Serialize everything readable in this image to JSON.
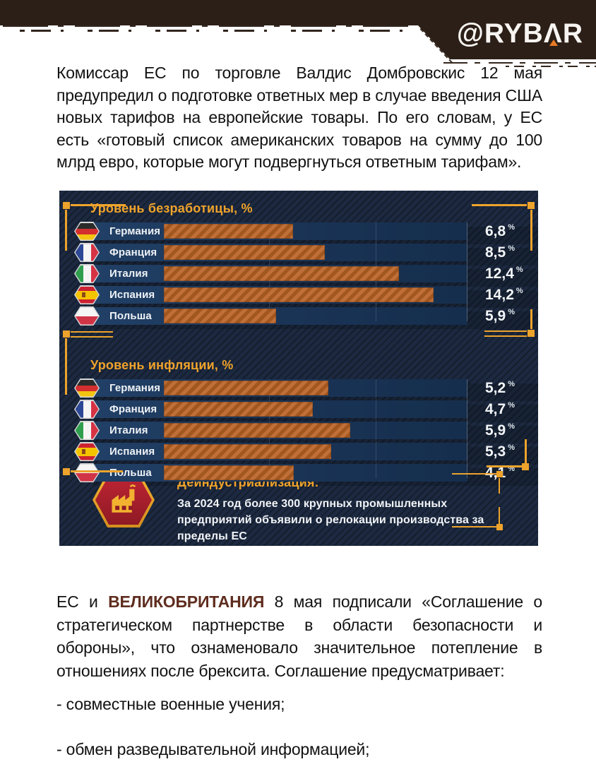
{
  "header": {
    "logo_text": "@RYBAR",
    "logo_prefix": "@RYB",
    "logo_a": "Λ",
    "logo_suffix": "R"
  },
  "intro_paragraph": "Комиссар ЕС по торговле Валдис Домбровскис 12 мая предупредил о подготовке ответных мер в случае введения США новых тарифов на европейские товары. По его словам, у ЕС есть «готовый список американских товаров на сумму до 100 млрд евро, которые могут подвергнуться ответным тарифам».",
  "chart_data": [
    {
      "type": "bar",
      "title": "Уровень безработицы, %",
      "unit": "%",
      "categories": [
        "Германия",
        "Франция",
        "Италия",
        "Испания",
        "Польша"
      ],
      "flags": [
        "de",
        "fr",
        "it",
        "es",
        "pl"
      ],
      "values": [
        6.8,
        8.5,
        12.4,
        14.2,
        5.9
      ],
      "value_labels": [
        "6,8",
        "8,5",
        "12,4",
        "14,2",
        "5,9"
      ],
      "xlim": [
        0,
        16
      ],
      "grid": true,
      "legend": false,
      "bar_color": "#b9652f"
    },
    {
      "type": "bar",
      "title": "Уровень инфляции, %",
      "unit": "%",
      "categories": [
        "Германия",
        "Франция",
        "Италия",
        "Испания",
        "Польша"
      ],
      "flags": [
        "de",
        "fr",
        "it",
        "es",
        "pl"
      ],
      "values": [
        5.2,
        4.7,
        5.9,
        5.3,
        4.1
      ],
      "value_labels": [
        "5,2",
        "4,7",
        "5,9",
        "5,3",
        "4,1"
      ],
      "xlim": [
        0,
        9.6
      ],
      "grid": true,
      "legend": false,
      "bar_color": "#b9652f"
    }
  ],
  "callout": {
    "title": "Деиндустриализация:",
    "body": "За 2024 год более 300 крупных промышленных предприятий объявили о релокации производства за пределы ЕС",
    "icon": "factory-icon"
  },
  "bottom_section": {
    "pre": "ЕС и ",
    "highlight": "ВЕЛИКОБРИТАНИЯ",
    "post": " 8 мая подписали «Соглашение о стратегическом партнерстве в области безопасности и обороны», что ознаменовало значительное потепление в отношениях после брексита. Соглашение предусматривает:",
    "bullets": [
      "- совместные военные учения;",
      "- обмен разведывательной информацией;"
    ]
  },
  "colors": {
    "accent_gold": "#eda32c",
    "bar_orange": "#b9652f",
    "panel_bg": "#1c2940",
    "row_band": "#1b3558",
    "callout_red": "#b02433",
    "highlight_text": "#5f2d1f",
    "header_brown": "#2b1f17",
    "logo_triangle": "#e87a25"
  }
}
